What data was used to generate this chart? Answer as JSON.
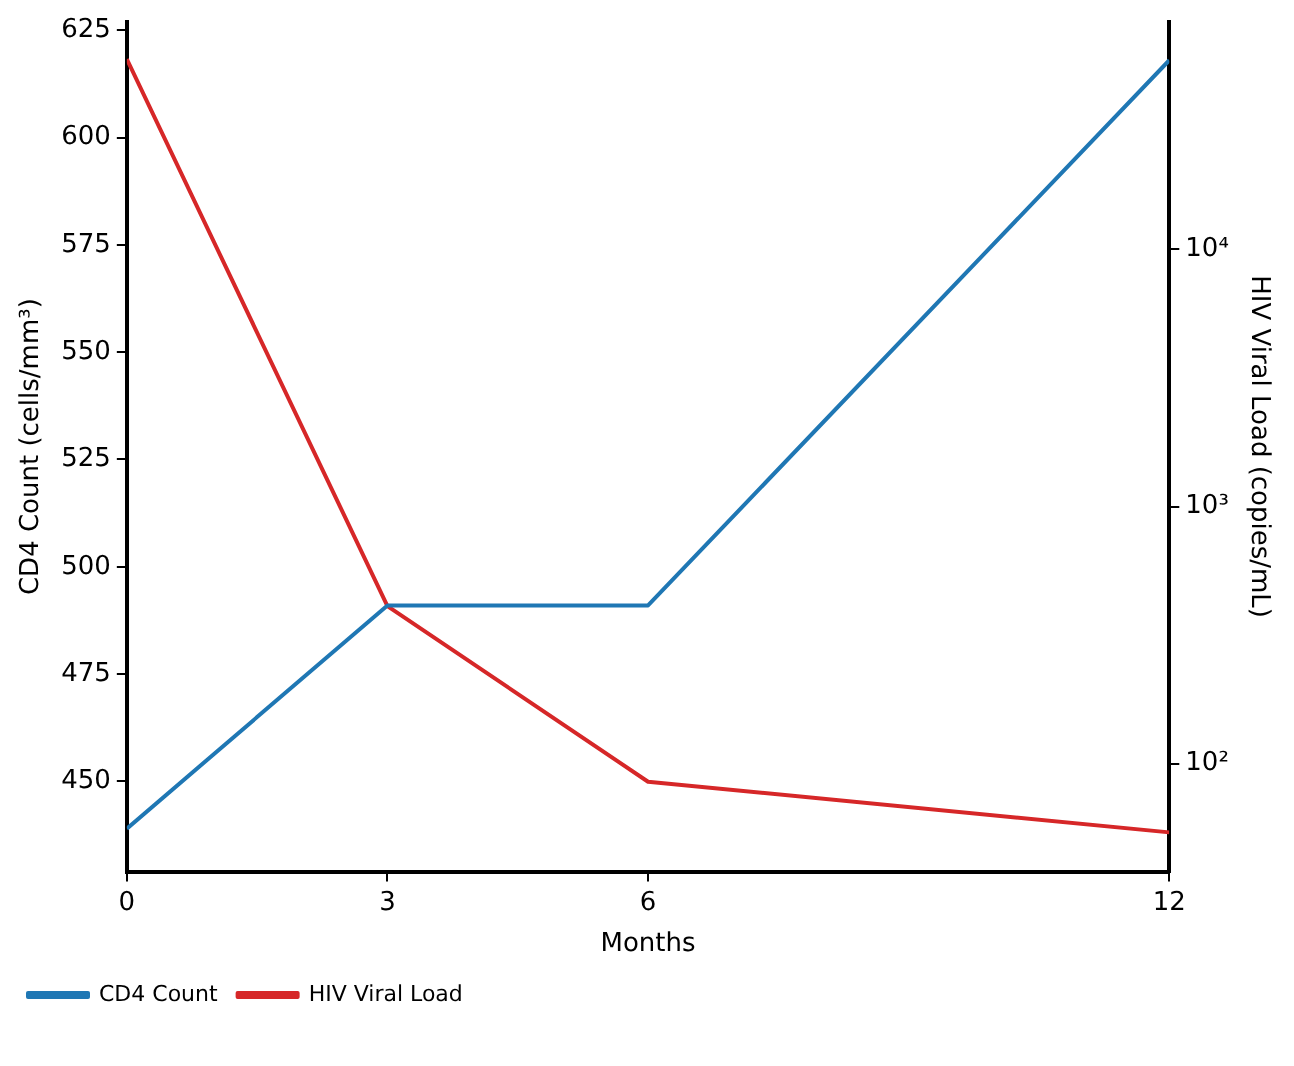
{
  "chart_data": {
    "type": "line",
    "xlabel": "Months",
    "ylabel": "CD4 Count (cells/mm³)",
    "y2label": "HIV Viral Load (copies/mL)",
    "x": [
      0,
      3,
      6,
      12
    ],
    "xlim": [
      0,
      12
    ],
    "xticks": [
      0,
      3,
      6,
      12
    ],
    "ylim": [
      429,
      627
    ],
    "yticks": [
      450,
      475,
      500,
      525,
      550,
      575,
      600,
      625
    ],
    "y2lim": [
      38,
      77000
    ],
    "y2ticks": [
      {
        "value": 100,
        "label": "10²"
      },
      {
        "value": 1000,
        "label": "10³"
      },
      {
        "value": 10000,
        "label": "10⁴"
      }
    ],
    "log": "y2",
    "grid": false,
    "legend": "bottom left",
    "marker": "none",
    "line_style": "solid",
    "series": [
      {
        "name": "CD4 Count",
        "color": "#1f77b4",
        "values": [
          439,
          491,
          491,
          618
        ]
      },
      {
        "name": "HIV Viral Load",
        "color": "#d62728",
        "axis": "y2",
        "values": [
          55000,
          410,
          85,
          54
        ]
      }
    ]
  }
}
